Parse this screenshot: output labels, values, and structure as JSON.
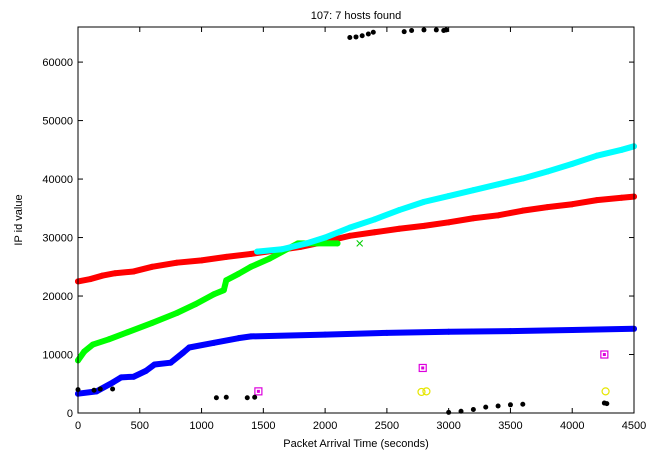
{
  "chart_data": {
    "type": "scatter",
    "title": "107: 7 hosts found",
    "xlabel": "Packet Arrival Time (seconds)",
    "ylabel": "IP id value",
    "xlim": [
      0,
      4500
    ],
    "ylim": [
      0,
      66000
    ],
    "xticks": [
      0,
      500,
      1000,
      1500,
      2000,
      2500,
      3000,
      3500,
      4000,
      4500
    ],
    "yticks": [
      0,
      10000,
      20000,
      30000,
      40000,
      50000,
      60000
    ],
    "grid": false,
    "legend": "none",
    "series": [
      {
        "color": "#ff0000",
        "style": "band",
        "points": [
          [
            0,
            22500
          ],
          [
            100,
            22900
          ],
          [
            200,
            23500
          ],
          [
            300,
            23900
          ],
          [
            450,
            24200
          ],
          [
            600,
            25000
          ],
          [
            800,
            25700
          ],
          [
            1000,
            26100
          ],
          [
            1200,
            26700
          ],
          [
            1400,
            27200
          ],
          [
            1600,
            27800
          ],
          [
            1800,
            28400
          ],
          [
            2000,
            29300
          ],
          [
            2200,
            30300
          ],
          [
            2400,
            30900
          ],
          [
            2600,
            31500
          ],
          [
            2800,
            32000
          ],
          [
            3000,
            32600
          ],
          [
            3200,
            33300
          ],
          [
            3400,
            33800
          ],
          [
            3600,
            34600
          ],
          [
            3800,
            35200
          ],
          [
            4000,
            35700
          ],
          [
            4200,
            36400
          ],
          [
            4400,
            36800
          ],
          [
            4500,
            37000
          ]
        ]
      },
      {
        "color": "#00ff00",
        "style": "band",
        "points": [
          [
            0,
            9000
          ],
          [
            50,
            10500
          ],
          [
            120,
            11700
          ],
          [
            250,
            12600
          ],
          [
            400,
            13800
          ],
          [
            600,
            15400
          ],
          [
            800,
            17100
          ],
          [
            950,
            18600
          ],
          [
            1100,
            20300
          ],
          [
            1180,
            21000
          ],
          [
            1200,
            22700
          ],
          [
            1300,
            23800
          ],
          [
            1400,
            25000
          ],
          [
            1550,
            26400
          ],
          [
            1700,
            28100
          ],
          [
            1780,
            29000
          ],
          [
            2100,
            29000
          ]
        ]
      },
      {
        "color": "#0000ff",
        "style": "band",
        "points": [
          [
            0,
            3300
          ],
          [
            150,
            3700
          ],
          [
            280,
            5200
          ],
          [
            350,
            6100
          ],
          [
            450,
            6200
          ],
          [
            550,
            7200
          ],
          [
            620,
            8300
          ],
          [
            750,
            8600
          ],
          [
            850,
            10300
          ],
          [
            900,
            11200
          ],
          [
            1100,
            12000
          ],
          [
            1300,
            12800
          ],
          [
            1400,
            13100
          ],
          [
            2000,
            13400
          ],
          [
            2500,
            13700
          ],
          [
            3000,
            13900
          ],
          [
            3500,
            14000
          ],
          [
            4000,
            14200
          ],
          [
            4500,
            14400
          ]
        ]
      },
      {
        "color": "#00ffff",
        "style": "band",
        "points": [
          [
            1450,
            27600
          ],
          [
            1650,
            28000
          ],
          [
            1850,
            29000
          ],
          [
            2000,
            30000
          ],
          [
            2200,
            31700
          ],
          [
            2400,
            33100
          ],
          [
            2600,
            34700
          ],
          [
            2800,
            36100
          ],
          [
            3000,
            37100
          ],
          [
            3200,
            38100
          ],
          [
            3400,
            39100
          ],
          [
            3600,
            40100
          ],
          [
            3800,
            41300
          ],
          [
            4000,
            42600
          ],
          [
            4200,
            44000
          ],
          [
            4400,
            45000
          ],
          [
            4500,
            45600
          ]
        ]
      },
      {
        "color": "#00cc00",
        "style": "cross",
        "points": [
          [
            2280,
            29000
          ]
        ]
      },
      {
        "color": "#dd00dd",
        "style": "square",
        "points": [
          [
            1460,
            3700
          ],
          [
            2790,
            7700
          ],
          [
            4260,
            10000
          ]
        ]
      },
      {
        "color": "#e6e600",
        "style": "circle",
        "points": [
          [
            2780,
            3600
          ],
          [
            2820,
            3700
          ],
          [
            4270,
            3700
          ]
        ]
      },
      {
        "color": "#000000",
        "style": "dot",
        "points": [
          [
            0,
            4000
          ],
          [
            130,
            3900
          ],
          [
            180,
            4100
          ],
          [
            280,
            4100
          ],
          [
            1120,
            2600
          ],
          [
            1200,
            2700
          ],
          [
            1370,
            2600
          ],
          [
            1430,
            2700
          ],
          [
            2200,
            64200
          ],
          [
            2250,
            64300
          ],
          [
            2300,
            64500
          ],
          [
            2350,
            64800
          ],
          [
            2390,
            65100
          ],
          [
            2640,
            65200
          ],
          [
            2700,
            65400
          ],
          [
            2800,
            65500
          ],
          [
            2900,
            65500
          ],
          [
            2960,
            65400
          ],
          [
            2980,
            65500
          ],
          [
            3000,
            100
          ],
          [
            3100,
            300
          ],
          [
            3200,
            600
          ],
          [
            3300,
            1000
          ],
          [
            3400,
            1200
          ],
          [
            3500,
            1400
          ],
          [
            3600,
            1500
          ],
          [
            4260,
            1700
          ],
          [
            4280,
            1600
          ]
        ]
      }
    ]
  }
}
